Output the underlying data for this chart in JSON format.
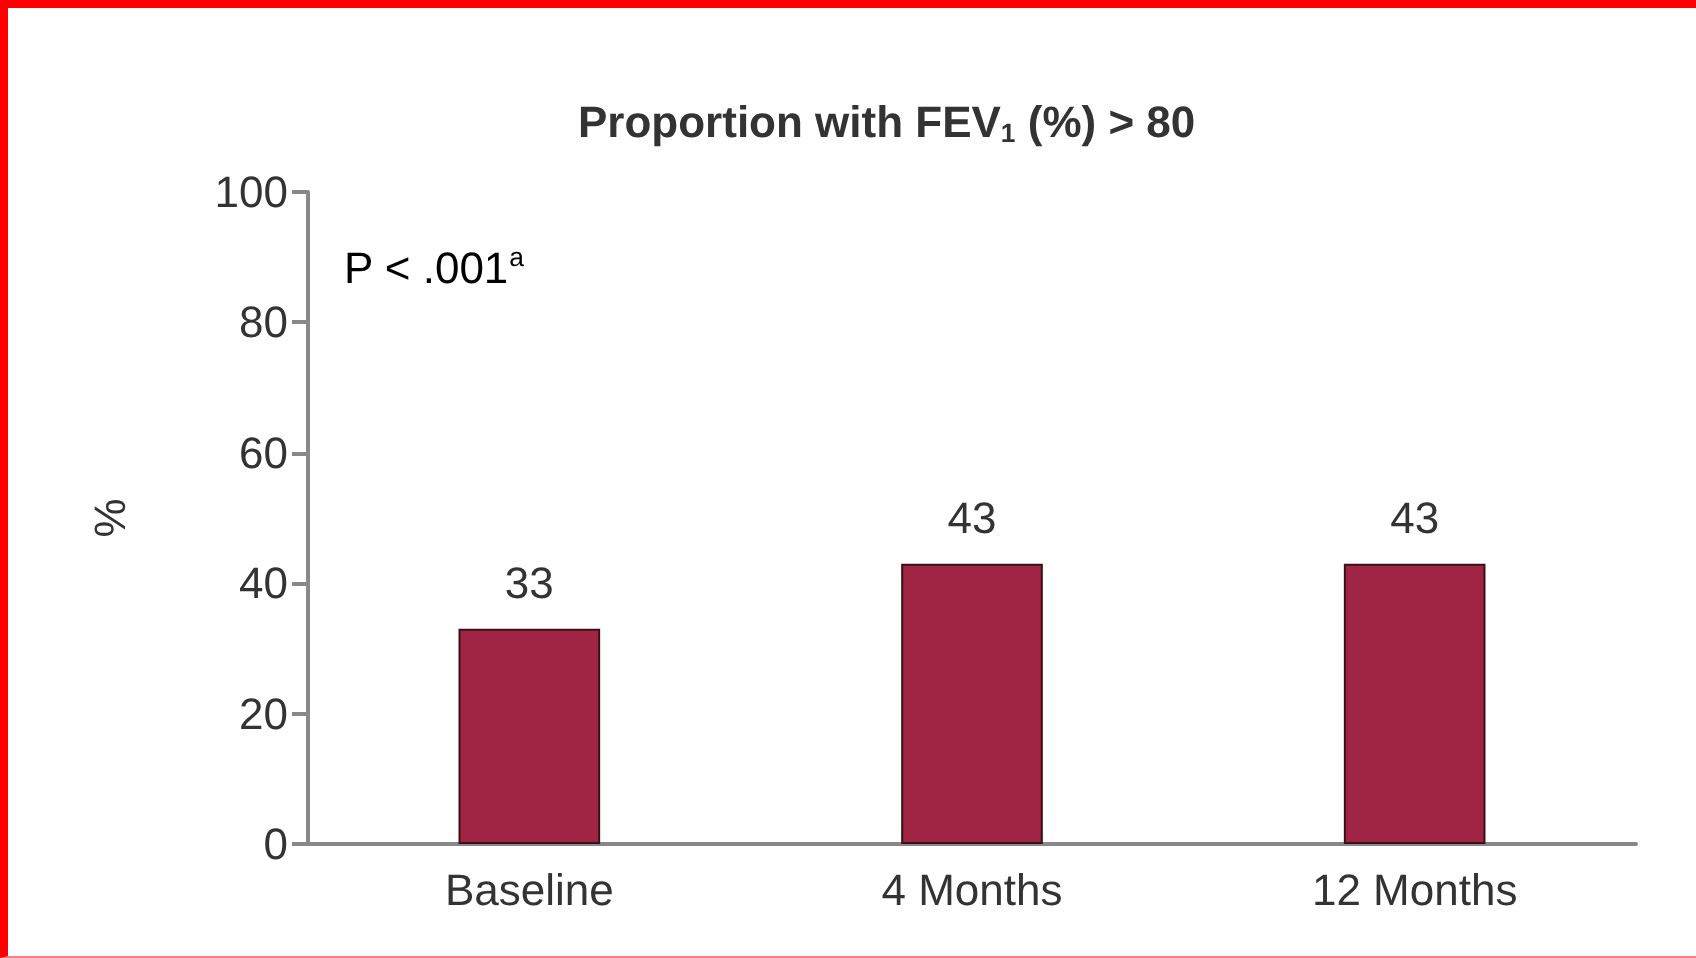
{
  "chart_data": {
    "type": "bar",
    "title": "Proportion with FEV$_{1}$ (%) > 80",
    "ylabel": "%",
    "categories": [
      "Baseline",
      "4 Months",
      "12 Months"
    ],
    "values": [
      33,
      43,
      43
    ],
    "color": "#a02444",
    "ylim": [
      0,
      100
    ],
    "yticks": [
      0,
      20,
      40,
      60,
      80,
      100
    ],
    "grid": false,
    "data_labels": true,
    "annotations": [
      "P < .001$^{a}$"
    ]
  }
}
